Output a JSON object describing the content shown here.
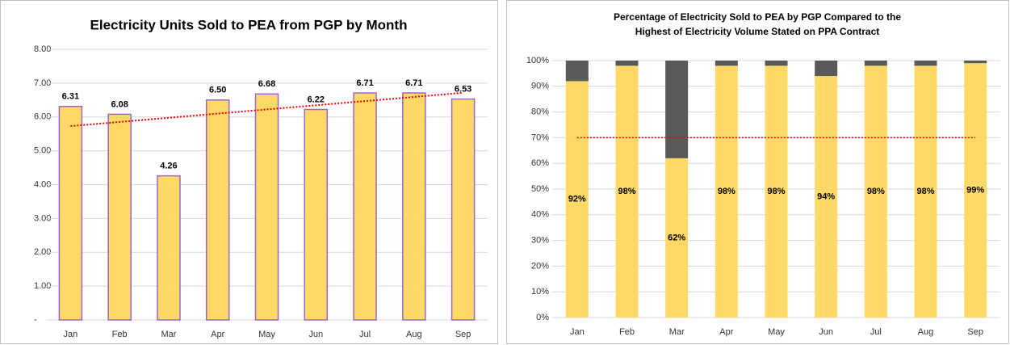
{
  "chart_data": [
    {
      "type": "bar",
      "title": "Electricity Units Sold to PEA from PGP by Month",
      "categories": [
        "Jan",
        "Feb",
        "Mar",
        "Apr",
        "May",
        "Jun",
        "Jul",
        "Aug",
        "Sep"
      ],
      "values": [
        6.31,
        6.08,
        4.26,
        6.5,
        6.68,
        6.22,
        6.71,
        6.71,
        6.53
      ],
      "value_labels": [
        "6.31",
        "6.08",
        "4.26",
        "6.50",
        "6.68",
        "6.22",
        "6.71",
        "6.71",
        "6.53"
      ],
      "color": "#ffd966",
      "edge_color": "#9966cc",
      "ylim": [
        0,
        8
      ],
      "yticks": [
        {
          "value": 0,
          "label": "-"
        },
        {
          "value": 1,
          "label": "1.00"
        },
        {
          "value": 2,
          "label": "2.00"
        },
        {
          "value": 3,
          "label": "3.00"
        },
        {
          "value": 4,
          "label": "4.00"
        },
        {
          "value": 5,
          "label": "5.00"
        },
        {
          "value": 6,
          "label": "6.00"
        },
        {
          "value": 7,
          "label": "7.00"
        },
        {
          "value": 8,
          "label": "8.00"
        }
      ],
      "grid": true,
      "trendline": "linear",
      "trendline_color": "#ff0000"
    },
    {
      "type": "stacked_bar",
      "title": [
        "Percentage of Electricity Sold to PEA by PGP Compared to the",
        "Highest of Electricity Volume Stated on PPA Contract"
      ],
      "categories": [
        "Jan",
        "Feb",
        "Mar",
        "Apr",
        "May",
        "Jun",
        "Jul",
        "Aug",
        "Sep"
      ],
      "series": [
        {
          "color": "#ffd966",
          "values": [
            92,
            98,
            62,
            98,
            98,
            94,
            98,
            98,
            99
          ],
          "value_labels": [
            "92%",
            "98%",
            "62%",
            "98%",
            "98%",
            "94%",
            "98%",
            "98%",
            "99%"
          ]
        },
        {
          "color": "#595959",
          "values": [
            8,
            2,
            38,
            2,
            2,
            6,
            2,
            2,
            1
          ]
        }
      ],
      "ylim": [
        0,
        100
      ],
      "yticks": [
        {
          "value": 0,
          "label": "0%"
        },
        {
          "value": 10,
          "label": "10%"
        },
        {
          "value": 20,
          "label": "20%"
        },
        {
          "value": 30,
          "label": "30%"
        },
        {
          "value": 40,
          "label": "40%"
        },
        {
          "value": 50,
          "label": "50%"
        },
        {
          "value": 60,
          "label": "60%"
        },
        {
          "value": 70,
          "label": "70%"
        },
        {
          "value": 80,
          "label": "80%"
        },
        {
          "value": 90,
          "label": "90%"
        },
        {
          "value": 100,
          "label": "100%"
        }
      ],
      "grid": true,
      "reference_line": 70,
      "reference_line_color": "#ff0000"
    }
  ]
}
